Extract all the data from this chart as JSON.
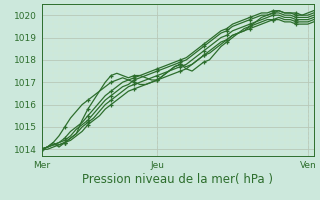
{
  "title": "Pression niveau de la mer( hPa )",
  "bg_color": "#cce8dc",
  "grid_major_color": "#b8c8b8",
  "grid_minor_color": "#d4e8d4",
  "line_color": "#2d6e2d",
  "ylim": [
    1013.7,
    1020.5
  ],
  "xlim": [
    0,
    47
  ],
  "xticks_pos": [
    0,
    20,
    46
  ],
  "xtick_labels": [
    "Mer",
    "Jeu",
    "Ven"
  ],
  "yticks": [
    1014,
    1015,
    1016,
    1017,
    1018,
    1019,
    1020
  ],
  "series": [
    [
      1014.0,
      1014.1,
      1014.3,
      1014.1,
      1014.3,
      1014.5,
      1014.7,
      1015.3,
      1015.8,
      1016.2,
      1016.6,
      1017.0,
      1017.3,
      1017.4,
      1017.3,
      1017.2,
      1017.3,
      1017.3,
      1017.2,
      1017.1,
      1017.1,
      1017.3,
      1017.5,
      1017.7,
      1017.8,
      1017.6,
      1017.5,
      1017.7,
      1017.9,
      1018.0,
      1018.3,
      1018.6,
      1018.8,
      1019.0,
      1019.2,
      1019.4,
      1019.5,
      1019.7,
      1019.9,
      1020.0,
      1020.1,
      1020.2,
      1020.1,
      1020.1,
      1020.1,
      1020.0,
      1020.1,
      1020.2
    ],
    [
      1014.0,
      1014.1,
      1014.2,
      1014.3,
      1014.5,
      1014.8,
      1015.0,
      1015.2,
      1015.5,
      1015.8,
      1016.1,
      1016.4,
      1016.6,
      1016.8,
      1017.0,
      1017.1,
      1017.2,
      1017.3,
      1017.4,
      1017.5,
      1017.6,
      1017.7,
      1017.8,
      1017.9,
      1018.0,
      1018.1,
      1018.3,
      1018.5,
      1018.7,
      1018.9,
      1019.1,
      1019.3,
      1019.4,
      1019.6,
      1019.7,
      1019.8,
      1019.9,
      1020.0,
      1020.1,
      1020.1,
      1020.2,
      1020.2,
      1020.1,
      1020.1,
      1020.0,
      1020.0,
      1020.0,
      1020.1
    ],
    [
      1014.0,
      1014.1,
      1014.2,
      1014.3,
      1014.4,
      1014.6,
      1014.9,
      1015.1,
      1015.3,
      1015.6,
      1015.9,
      1016.2,
      1016.4,
      1016.6,
      1016.8,
      1016.9,
      1017.1,
      1017.2,
      1017.3,
      1017.4,
      1017.5,
      1017.6,
      1017.7,
      1017.8,
      1017.9,
      1018.0,
      1018.2,
      1018.4,
      1018.6,
      1018.8,
      1019.0,
      1019.2,
      1019.3,
      1019.5,
      1019.6,
      1019.7,
      1019.8,
      1019.9,
      1020.0,
      1020.0,
      1020.1,
      1020.1,
      1020.0,
      1020.0,
      1019.9,
      1019.9,
      1019.9,
      1020.0
    ],
    [
      1014.0,
      1014.1,
      1014.2,
      1014.2,
      1014.3,
      1014.5,
      1014.7,
      1015.0,
      1015.2,
      1015.4,
      1015.7,
      1016.0,
      1016.2,
      1016.4,
      1016.6,
      1016.8,
      1016.9,
      1017.0,
      1017.1,
      1017.2,
      1017.3,
      1017.4,
      1017.5,
      1017.6,
      1017.7,
      1017.8,
      1018.0,
      1018.2,
      1018.4,
      1018.6,
      1018.8,
      1019.0,
      1019.1,
      1019.3,
      1019.4,
      1019.5,
      1019.6,
      1019.7,
      1019.8,
      1019.9,
      1020.0,
      1020.0,
      1019.9,
      1019.9,
      1019.8,
      1019.8,
      1019.8,
      1019.9
    ],
    [
      1014.0,
      1014.0,
      1014.1,
      1014.2,
      1014.3,
      1014.4,
      1014.6,
      1014.8,
      1015.1,
      1015.3,
      1015.5,
      1015.8,
      1016.0,
      1016.2,
      1016.4,
      1016.6,
      1016.7,
      1016.8,
      1016.9,
      1017.0,
      1017.1,
      1017.2,
      1017.3,
      1017.4,
      1017.5,
      1017.6,
      1017.8,
      1018.0,
      1018.2,
      1018.4,
      1018.6,
      1018.8,
      1018.9,
      1019.1,
      1019.2,
      1019.3,
      1019.4,
      1019.5,
      1019.6,
      1019.7,
      1019.8,
      1019.8,
      1019.7,
      1019.7,
      1019.6,
      1019.6,
      1019.6,
      1019.7
    ],
    [
      1014.0,
      1014.1,
      1014.3,
      1014.6,
      1015.0,
      1015.4,
      1015.7,
      1016.0,
      1016.2,
      1016.4,
      1016.6,
      1016.8,
      1017.0,
      1017.1,
      1017.2,
      1017.1,
      1017.0,
      1016.9,
      1016.9,
      1017.0,
      1017.1,
      1017.3,
      1017.5,
      1017.7,
      1017.8,
      1017.7,
      1017.8,
      1018.0,
      1018.2,
      1018.3,
      1018.5,
      1018.7,
      1018.9,
      1019.1,
      1019.2,
      1019.3,
      1019.5,
      1019.6,
      1019.7,
      1019.8,
      1019.8,
      1019.9,
      1019.8,
      1019.8,
      1019.7,
      1019.7,
      1019.7,
      1019.8
    ]
  ],
  "marker_every": 4,
  "linewidth": 0.9,
  "markersize": 2.8,
  "font_color": "#2d6e2d",
  "tick_fontsize": 6.5,
  "title_fontsize": 8.5
}
